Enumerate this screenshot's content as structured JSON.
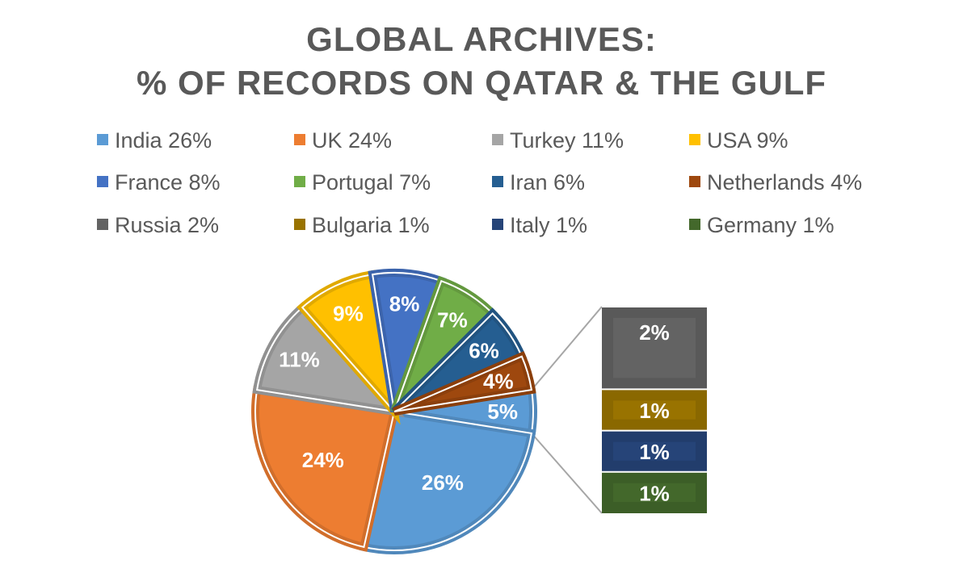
{
  "chart_data": {
    "type": "pie",
    "variant": "bar-of-pie",
    "title_lines": [
      "GLOBAL ARCHIVES:",
      "% OF RECORDS ON QATAR & THE GULF"
    ],
    "legend_position": "top",
    "slices": [
      {
        "name": "India",
        "value": 26,
        "color": "#5B9BD5",
        "legend": "India 26%",
        "label": "26%"
      },
      {
        "name": "UK",
        "value": 24,
        "color": "#ED7D31",
        "legend": "UK 24%",
        "label": "24%"
      },
      {
        "name": "Turkey",
        "value": 11,
        "color": "#A5A5A5",
        "legend": "Turkey 11%",
        "label": "11%"
      },
      {
        "name": "USA",
        "value": 9,
        "color": "#FFC000",
        "legend": "USA 9%",
        "label": "9%"
      },
      {
        "name": "France",
        "value": 8,
        "color": "#4472C4",
        "legend": "France 8%",
        "label": "8%"
      },
      {
        "name": "Portugal",
        "value": 7,
        "color": "#70AD47",
        "legend": "Portugal 7%",
        "label": "7%"
      },
      {
        "name": "Iran",
        "value": 6,
        "color": "#255E91",
        "legend": "Iran 6%",
        "label": "6%"
      },
      {
        "name": "Netherlands",
        "value": 4,
        "color": "#9E480E",
        "legend": "Netherlands 4%",
        "label": "4%"
      },
      {
        "name": "Russia",
        "value": 2,
        "color": "#636363",
        "legend": "Russia 2%",
        "label": "2%"
      },
      {
        "name": "Bulgaria",
        "value": 1,
        "color": "#997300",
        "legend": "Bulgaria 1%",
        "label": "1%"
      },
      {
        "name": "Italy",
        "value": 1,
        "color": "#264478",
        "legend": "Italy 1%",
        "label": "1%"
      },
      {
        "name": "Germany",
        "value": 1,
        "color": "#43682B",
        "legend": "Germany 1%",
        "label": "1%"
      }
    ],
    "other_slice": {
      "value": 5,
      "color": "#5B9BD5",
      "label": "5%"
    },
    "main_pie_order": [
      "India",
      "UK",
      "Turkey",
      "USA",
      "France",
      "Portugal",
      "Iran",
      "Netherlands"
    ],
    "bar_order": [
      "Russia",
      "Bulgaria",
      "Italy",
      "Germany"
    ]
  }
}
